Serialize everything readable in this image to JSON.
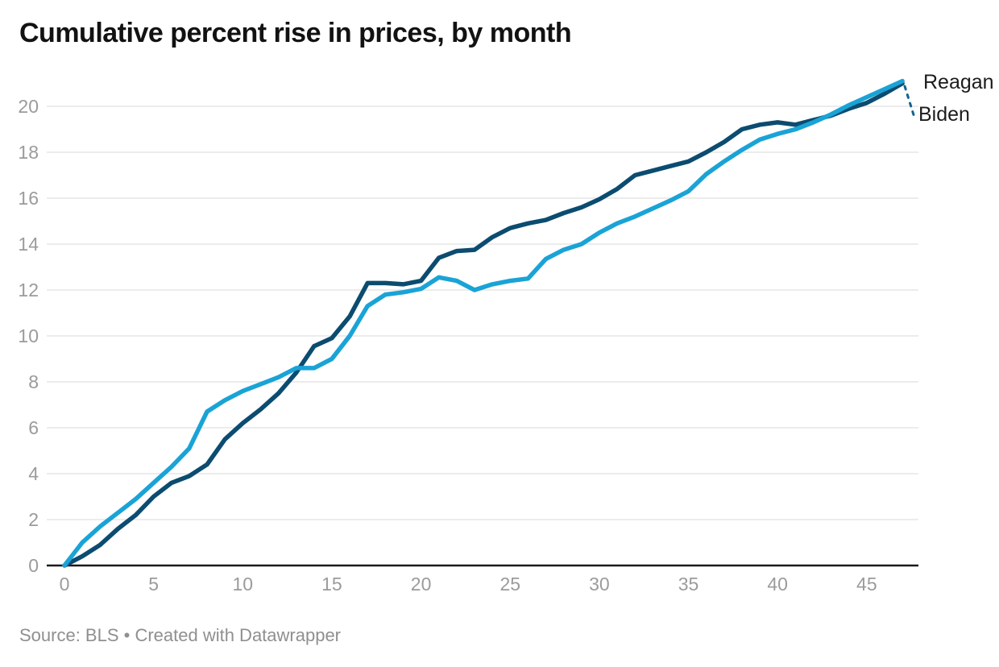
{
  "header": {
    "title": "Cumulative percent rise in prices, by month"
  },
  "footer": {
    "source_text": "Source: BLS • Created with Datawrapper"
  },
  "colors": {
    "reagan_line": "#1aa3d6",
    "biden_line": "#0b4c70",
    "leader_line": "#13638f",
    "gridline": "#e6e6e6",
    "axis_line": "#1a1a1a",
    "tick_label": "#9b9b9b",
    "series_label": "#1c1c1c",
    "title": "#121212",
    "footer": "#8f8f8f"
  },
  "chart_data": {
    "type": "line",
    "title": "Cumulative percent rise in prices, by month",
    "xlabel": "",
    "ylabel": "",
    "xlim": [
      0,
      48
    ],
    "ylim": [
      0,
      21.2
    ],
    "x_ticks": [
      0,
      5,
      10,
      15,
      20,
      25,
      30,
      35,
      40,
      45
    ],
    "y_ticks": [
      0,
      2,
      4,
      6,
      8,
      10,
      12,
      14,
      16,
      18,
      20
    ],
    "grid": "horizontal",
    "legend_position": "end-of-line labels, right side",
    "x": [
      0,
      1,
      2,
      3,
      4,
      5,
      6,
      7,
      8,
      9,
      10,
      11,
      12,
      13,
      14,
      15,
      16,
      17,
      18,
      19,
      20,
      21,
      22,
      23,
      24,
      25,
      26,
      27,
      28,
      29,
      30,
      31,
      32,
      33,
      34,
      35,
      36,
      37,
      38,
      39,
      40,
      41,
      42,
      43,
      44,
      45,
      46,
      47
    ],
    "series": [
      {
        "name": "Reagan",
        "color": "#1aa3d6",
        "values": [
          0,
          1.0,
          1.7,
          2.3,
          2.9,
          3.6,
          4.3,
          5.1,
          6.7,
          7.2,
          7.6,
          7.9,
          8.2,
          8.6,
          8.6,
          9.0,
          10.0,
          11.3,
          11.8,
          11.9,
          12.05,
          12.55,
          12.4,
          12.0,
          12.25,
          12.4,
          12.5,
          13.35,
          13.75,
          14.0,
          14.5,
          14.9,
          15.2,
          15.55,
          15.9,
          16.3,
          17.05,
          17.6,
          18.1,
          18.55,
          18.8,
          19.0,
          19.3,
          19.65,
          20.05,
          20.4,
          20.75,
          21.1
        ]
      },
      {
        "name": "Biden",
        "color": "#0b4c70",
        "values": [
          0,
          0.4,
          0.9,
          1.6,
          2.2,
          3.0,
          3.6,
          3.9,
          4.4,
          5.5,
          6.2,
          6.8,
          7.5,
          8.4,
          9.55,
          9.9,
          10.85,
          12.3,
          12.3,
          12.25,
          12.4,
          13.4,
          13.7,
          13.75,
          14.3,
          14.7,
          14.9,
          15.05,
          15.35,
          15.6,
          15.95,
          16.4,
          17.0,
          17.2,
          17.4,
          17.6,
          18.0,
          18.45,
          19.0,
          19.2,
          19.3,
          19.2,
          19.4,
          19.6,
          19.9,
          20.15,
          20.55,
          21.0
        ]
      }
    ]
  }
}
